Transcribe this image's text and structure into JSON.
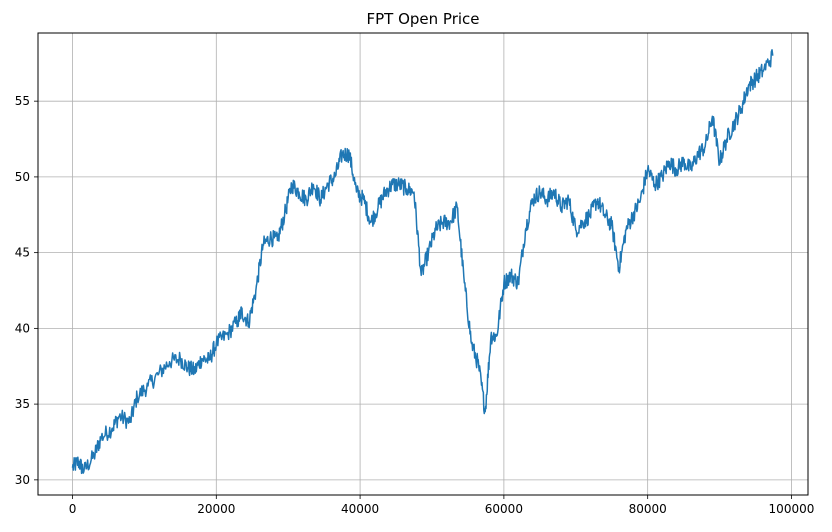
{
  "chart_data": {
    "type": "line",
    "title": "FPT Open Price",
    "xlabel": "",
    "ylabel": "",
    "xlim": [
      -4800,
      102300
    ],
    "ylim": [
      29.0,
      59.5
    ],
    "x_ticks": [
      0,
      20000,
      40000,
      60000,
      80000,
      100000
    ],
    "x_tick_labels": [
      "0",
      "20000",
      "40000",
      "60000",
      "80000",
      "100000"
    ],
    "y_ticks": [
      30,
      35,
      40,
      45,
      50,
      55
    ],
    "y_tick_labels": [
      "30",
      "35",
      "40",
      "45",
      "50",
      "55"
    ],
    "grid": true,
    "legend": "none",
    "series": [
      {
        "color": "#1f77b4",
        "x": [
          0,
          800,
          1600,
          3000,
          4000,
          5500,
          6500,
          8000,
          9000,
          10500,
          12000,
          13500,
          15000,
          16000,
          17000,
          18000,
          19000,
          20000,
          21500,
          23000,
          23500,
          24500,
          25500,
          26500,
          27500,
          28500,
          29500,
          30500,
          31500,
          32500,
          33500,
          34500,
          35500,
          36500,
          37500,
          38500,
          39500,
          40500,
          41500,
          42500,
          43500,
          44500,
          45500,
          46500,
          47500,
          48500,
          49500,
          50500,
          51500,
          52500,
          53500,
          54500,
          55500,
          56500,
          57400,
          58200,
          59000,
          60000,
          61000,
          62000,
          63000,
          64000,
          65000,
          66000,
          67000,
          68000,
          69000,
          70000,
          71000,
          72000,
          73000,
          74000,
          75000,
          76000,
          77000,
          78000,
          79000,
          80000,
          81000,
          82000,
          83000,
          84000,
          85000,
          86000,
          87000,
          88000,
          89000,
          90000,
          91000,
          92000,
          93000,
          94000,
          95000,
          96000,
          97400
        ],
        "values": [
          30.8,
          31.2,
          30.6,
          31.6,
          32.8,
          33.4,
          34.2,
          33.8,
          35.5,
          36.2,
          37.0,
          37.8,
          38.0,
          37.4,
          37.2,
          38.0,
          37.9,
          39.0,
          39.6,
          40.5,
          41.1,
          40.4,
          42.5,
          45.5,
          46.0,
          45.8,
          47.5,
          49.5,
          49.0,
          48.5,
          49.5,
          48.5,
          49.5,
          50.0,
          51.5,
          51.5,
          49.0,
          48.5,
          47.0,
          48.0,
          49.0,
          49.5,
          49.5,
          49.2,
          49.0,
          43.5,
          45.0,
          46.5,
          47.0,
          47.0,
          48.0,
          43.0,
          39.0,
          37.5,
          34.5,
          39.5,
          39.5,
          43.0,
          43.5,
          43.0,
          46.5,
          48.5,
          49.0,
          48.5,
          49.0,
          48.0,
          48.5,
          46.5,
          47.0,
          47.5,
          48.5,
          47.5,
          46.8,
          44.0,
          46.5,
          47.5,
          48.5,
          50.5,
          49.5,
          50.0,
          51.0,
          50.5,
          51.0,
          50.5,
          51.5,
          52.0,
          54.0,
          51.0,
          52.5,
          53.5,
          54.5,
          56.0,
          56.5,
          57.0,
          58.0
        ]
      }
    ]
  }
}
